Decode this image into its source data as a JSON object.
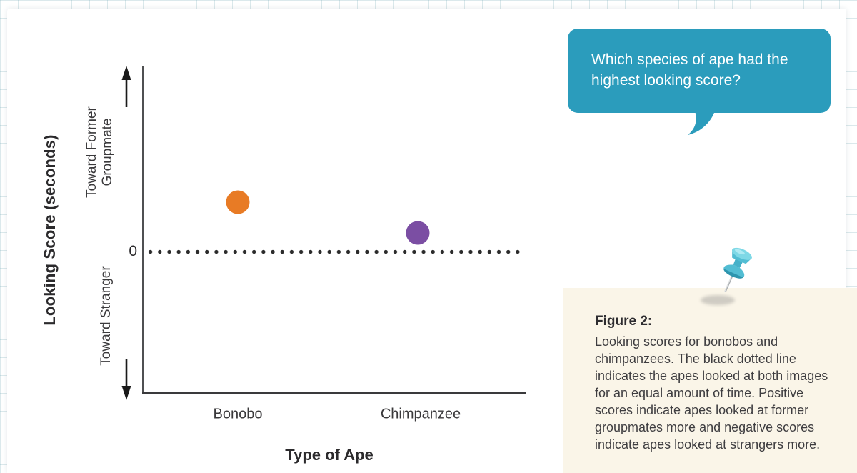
{
  "question_bubble": {
    "text": "Which species of ape had the highest looking score?"
  },
  "figure_caption": {
    "title": "Figure 2:",
    "body": "Looking scores for bonobos and chimpanzees. The black dotted line indicates the apes looked at both images for an equal amount of time. Positive scores indicate apes looked at former groupmates more and negative scores indicate apes looked at strangers more."
  },
  "chart_data": {
    "type": "scatter",
    "title": "",
    "xlabel": "Type of Ape",
    "ylabel": "Looking Score (seconds)",
    "categories": [
      "Bonobo",
      "Chimpanzee"
    ],
    "series": [
      {
        "name": "Looking score",
        "values": [
          0.27,
          0.1
        ]
      }
    ],
    "value_note": "Y axis has no numeric tick labels besides 0; values are estimated fractions of the positive axis span (Bonobo highest, both positive).",
    "ylim": [
      -0.77,
      1.0
    ],
    "zero_label": "0",
    "zero_line": {
      "style": "dotted",
      "color": "#2b2b2b"
    },
    "axis_annotations": {
      "positive": "Toward Former Groupmate",
      "negative": "Toward Stranger"
    },
    "point_colors": [
      "#E87B25",
      "#7B4EA3"
    ],
    "grid": false,
    "legend": false
  },
  "colors": {
    "bubble_teal": "#2B9CBC",
    "caption_cream": "#FAF5E8",
    "bonobo_orange": "#E87B25",
    "chimpanzee_purple": "#7B4EA3",
    "axis_gray": "#4F5052"
  }
}
